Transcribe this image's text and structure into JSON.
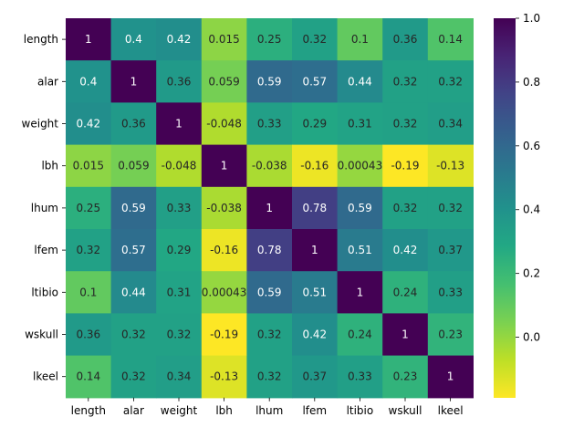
{
  "chart_data": {
    "type": "heatmap",
    "title": "",
    "xlabel": "",
    "ylabel": "",
    "row_labels": [
      "length",
      "alar",
      "weight",
      "lbh",
      "lhum",
      "lfem",
      "ltibio",
      "wskull",
      "lkeel"
    ],
    "col_labels": [
      "length",
      "alar",
      "weight",
      "lbh",
      "lhum",
      "lfem",
      "ltibio",
      "wskull",
      "lkeel"
    ],
    "values": [
      [
        1,
        0.4,
        0.42,
        0.015,
        0.25,
        0.32,
        0.1,
        0.36,
        0.14
      ],
      [
        0.4,
        1,
        0.36,
        0.059,
        0.59,
        0.57,
        0.44,
        0.32,
        0.32
      ],
      [
        0.42,
        0.36,
        1,
        -0.048,
        0.33,
        0.29,
        0.31,
        0.32,
        0.34
      ],
      [
        0.015,
        0.059,
        -0.048,
        1,
        -0.038,
        -0.16,
        0.00043,
        -0.19,
        -0.13
      ],
      [
        0.25,
        0.59,
        0.33,
        -0.038,
        1,
        0.78,
        0.59,
        0.32,
        0.32
      ],
      [
        0.32,
        0.57,
        0.29,
        -0.16,
        0.78,
        1,
        0.51,
        0.42,
        0.37
      ],
      [
        0.1,
        0.44,
        0.31,
        0.00043,
        0.59,
        0.51,
        1,
        0.24,
        0.33
      ],
      [
        0.36,
        0.32,
        0.32,
        -0.19,
        0.32,
        0.42,
        0.24,
        1,
        0.23
      ],
      [
        0.14,
        0.32,
        0.34,
        -0.13,
        0.32,
        0.37,
        0.33,
        0.23,
        1
      ]
    ],
    "annotations": [
      [
        "1",
        "0.4",
        "0.42",
        "0.015",
        "0.25",
        "0.32",
        "0.1",
        "0.36",
        "0.14"
      ],
      [
        "0.4",
        "1",
        "0.36",
        "0.059",
        "0.59",
        "0.57",
        "0.44",
        "0.32",
        "0.32"
      ],
      [
        "0.42",
        "0.36",
        "1",
        "-0.048",
        "0.33",
        "0.29",
        "0.31",
        "0.32",
        "0.34"
      ],
      [
        "0.015",
        "0.059",
        "-0.048",
        "1",
        "-0.038",
        "-0.16",
        "0.00043",
        "-0.19",
        "-0.13"
      ],
      [
        "0.25",
        "0.59",
        "0.33",
        "-0.038",
        "1",
        "0.78",
        "0.59",
        "0.32",
        "0.32"
      ],
      [
        "0.32",
        "0.57",
        "0.29",
        "-0.16",
        "0.78",
        "1",
        "0.51",
        "0.42",
        "0.37"
      ],
      [
        "0.1",
        "0.44",
        "0.31",
        "0.00043",
        "0.59",
        "0.51",
        "1",
        "0.24",
        "0.33"
      ],
      [
        "0.36",
        "0.32",
        "0.32",
        "-0.19",
        "0.32",
        "0.42",
        "0.24",
        "1",
        "0.23"
      ],
      [
        "0.14",
        "0.32",
        "0.34",
        "-0.13",
        "0.32",
        "0.37",
        "0.33",
        "0.23",
        "1"
      ]
    ],
    "colormap": "viridis_r",
    "vmin": -0.19,
    "vmax": 1,
    "colorbar": {
      "ticks": [
        0.0,
        0.2,
        0.4,
        0.6,
        0.8,
        1.0
      ],
      "tick_labels": [
        "0.0",
        "0.2",
        "0.4",
        "0.6",
        "0.8",
        "1.0"
      ]
    },
    "grid": false,
    "legend": "colorbar-right"
  }
}
